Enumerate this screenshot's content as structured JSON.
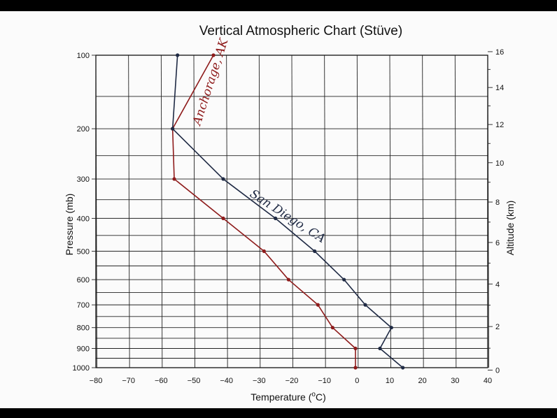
{
  "chart_data": {
    "type": "line",
    "title": "Vertical Atmospheric Chart (Stüve)",
    "xlabel": "Temperature (°C)",
    "xlabel_parts": {
      "text": "Temperature (",
      "sup": "o",
      "unit": "C)"
    },
    "ylabel": "Pressure (mb)",
    "y2label": "Altitude (km)",
    "xlim": [
      -80,
      40
    ],
    "x_ticks": [
      -80,
      -70,
      -60,
      -50,
      -40,
      -30,
      -20,
      -10,
      0,
      10,
      20,
      30,
      40
    ],
    "x_tick_labels": [
      "−80",
      "−70",
      "−60",
      "−50",
      "−40",
      "−30",
      "−20",
      "−10",
      "0",
      "10",
      "20",
      "30",
      "40"
    ],
    "pressure_ticks": [
      100,
      200,
      300,
      400,
      500,
      600,
      700,
      800,
      900,
      1000
    ],
    "altitude_ticks": [
      0,
      2,
      4,
      6,
      8,
      10,
      12,
      14,
      16
    ],
    "grid": true,
    "series": [
      {
        "name": "Anchorage, AK",
        "color": "#8e1b1b",
        "points": [
          {
            "t": -44,
            "p": 100
          },
          {
            "t": -56.5,
            "p": 200
          },
          {
            "t": -56,
            "p": 300
          },
          {
            "t": -41,
            "p": 400
          },
          {
            "t": -28.5,
            "p": 500
          },
          {
            "t": -21,
            "p": 600
          },
          {
            "t": -12,
            "p": 700
          },
          {
            "t": -7.5,
            "p": 800
          },
          {
            "t": -0.5,
            "p": 900
          },
          {
            "t": -0.5,
            "p": 1000
          }
        ]
      },
      {
        "name": "San Diego, CA",
        "color": "#1f2a44",
        "points": [
          {
            "t": -55,
            "p": 100
          },
          {
            "t": -56.5,
            "p": 200
          },
          {
            "t": -41,
            "p": 300
          },
          {
            "t": -25,
            "p": 400
          },
          {
            "t": -13,
            "p": 500
          },
          {
            "t": -4,
            "p": 600
          },
          {
            "t": 2.5,
            "p": 700
          },
          {
            "t": 10.5,
            "p": 800
          },
          {
            "t": 7,
            "p": 900
          },
          {
            "t": 14,
            "p": 1000
          }
        ]
      }
    ],
    "annotations": [
      "Anchorage, AK",
      "San Diego, CA"
    ]
  }
}
